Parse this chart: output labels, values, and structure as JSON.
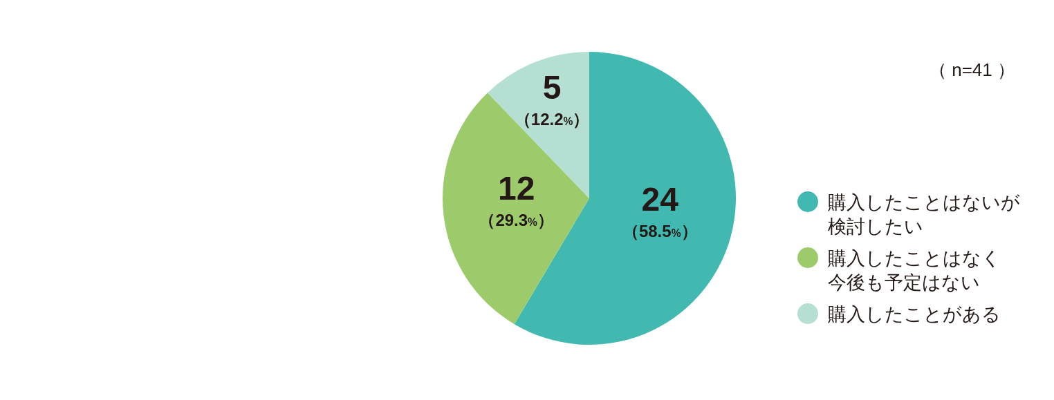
{
  "chart_data": {
    "type": "pie",
    "categories": [
      "購入したことはないが検討したい",
      "購入したことはなく今後も予定はない",
      "購入したことがある"
    ],
    "values": [
      24,
      12,
      5
    ],
    "colors": [
      "#42b9b0",
      "#9dcb6b",
      "#b5dfd2"
    ],
    "value_labels": [
      "24\n（58.5%）",
      "12\n（29.3%）",
      "5\n（12.2%）"
    ],
    "legend": "right",
    "annotations": [
      "（ n=41 ）"
    ]
  }
}
